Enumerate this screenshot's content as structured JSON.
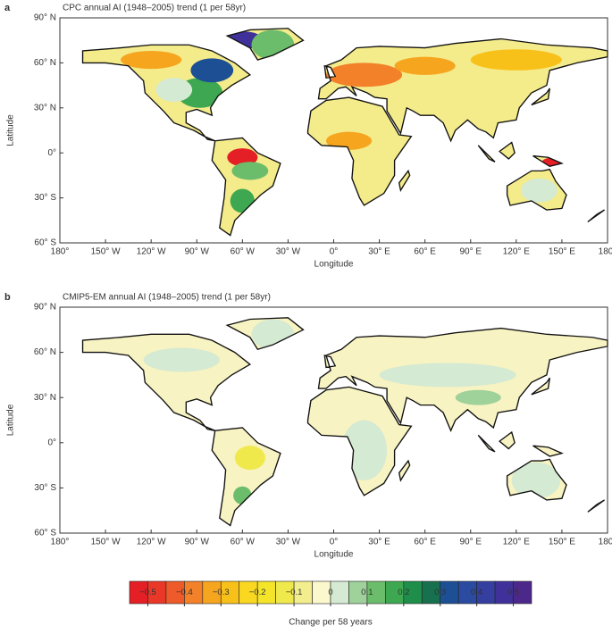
{
  "chart_data": [
    {
      "type": "map",
      "panel": "a",
      "title": "CPC annual AI (1948–2005) trend (1 per 58yr)",
      "xlabel": "Longitude",
      "ylabel": "Latitude",
      "xlim": [
        -180,
        180
      ],
      "ylim": [
        -60,
        90
      ],
      "xticks": [
        {
          "value": -180,
          "label": "180°"
        },
        {
          "value": -150,
          "label": "150° W"
        },
        {
          "value": -120,
          "label": "120° W"
        },
        {
          "value": -90,
          "label": "90° W"
        },
        {
          "value": -60,
          "label": "60° W"
        },
        {
          "value": -30,
          "label": "30° W"
        },
        {
          "value": 0,
          "label": "0°"
        },
        {
          "value": 30,
          "label": "30° E"
        },
        {
          "value": 60,
          "label": "60° E"
        },
        {
          "value": 90,
          "label": "90° E"
        },
        {
          "value": 120,
          "label": "120° E"
        },
        {
          "value": 150,
          "label": "150° E"
        },
        {
          "value": 180,
          "label": "180°"
        }
      ],
      "yticks": [
        {
          "value": 90,
          "label": "90° N"
        },
        {
          "value": 60,
          "label": "60° N"
        },
        {
          "value": 30,
          "label": "30° N"
        },
        {
          "value": 0,
          "label": "0°"
        },
        {
          "value": -30,
          "label": "30° S"
        },
        {
          "value": -60,
          "label": "60° S"
        }
      ]
    },
    {
      "type": "map",
      "panel": "b",
      "title": "CMIP5-EM annual AI (1948–2005) trend (1 per 58yr)",
      "xlabel": "Longitude",
      "ylabel": "Latitude",
      "xlim": [
        -180,
        180
      ],
      "ylim": [
        -60,
        90
      ],
      "xticks": [
        {
          "value": -180,
          "label": "180°"
        },
        {
          "value": -150,
          "label": "150° W"
        },
        {
          "value": -120,
          "label": "120° W"
        },
        {
          "value": -90,
          "label": "90° W"
        },
        {
          "value": -60,
          "label": "60° W"
        },
        {
          "value": -30,
          "label": "30° W"
        },
        {
          "value": 0,
          "label": "0°"
        },
        {
          "value": 30,
          "label": "30° E"
        },
        {
          "value": 60,
          "label": "60° E"
        },
        {
          "value": 90,
          "label": "90° E"
        },
        {
          "value": 120,
          "label": "120° E"
        },
        {
          "value": 150,
          "label": "150° E"
        },
        {
          "value": 180,
          "label": "180°"
        }
      ],
      "yticks": [
        {
          "value": 90,
          "label": "90° N"
        },
        {
          "value": 60,
          "label": "60° N"
        },
        {
          "value": 30,
          "label": "30° N"
        },
        {
          "value": 0,
          "label": "0°"
        },
        {
          "value": -30,
          "label": "30° S"
        },
        {
          "value": -60,
          "label": "60° S"
        }
      ]
    },
    {
      "type": "colorbar",
      "xlabel": "Change per 58 years",
      "bins": [
        -0.55,
        -0.5,
        -0.45,
        -0.4,
        -0.35,
        -0.3,
        -0.25,
        -0.2,
        -0.15,
        -0.1,
        -0.05,
        0,
        0.05,
        0.1,
        0.15,
        0.2,
        0.25,
        0.3,
        0.35,
        0.4,
        0.45,
        0.5,
        0.55
      ],
      "colors": [
        "#e41f26",
        "#ea3828",
        "#ee5a2a",
        "#f2812a",
        "#f6a51f",
        "#f8c11a",
        "#fad822",
        "#f4e42a",
        "#efe94c",
        "#f2ee8e",
        "#fbf8cd",
        "#d5ead2",
        "#9fd19b",
        "#6cbd6b",
        "#3da851",
        "#1e8e4a",
        "#17704e",
        "#1d4f95",
        "#2b4ba0",
        "#353f9f",
        "#40319a",
        "#4d288b"
      ],
      "xlim": [
        -0.55,
        0.55
      ],
      "xticks": [
        {
          "value": -0.5,
          "label": "−0.5"
        },
        {
          "value": -0.4,
          "label": "−0.4"
        },
        {
          "value": -0.3,
          "label": "−0.3"
        },
        {
          "value": -0.2,
          "label": "−0.2"
        },
        {
          "value": -0.1,
          "label": "−0.1"
        },
        0,
        0.1,
        0.2,
        0.3,
        0.4,
        0.5
      ]
    }
  ]
}
